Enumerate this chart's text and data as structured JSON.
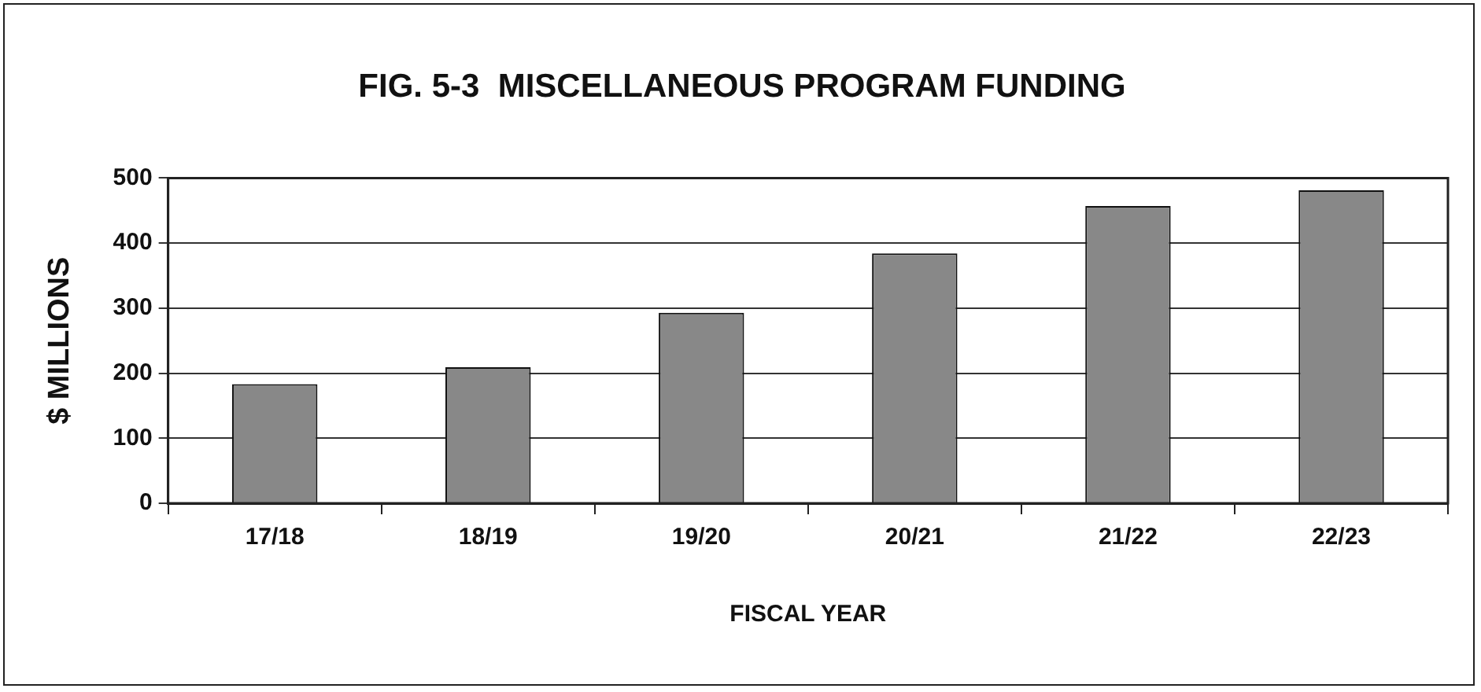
{
  "chart_data": {
    "type": "bar",
    "title": "FIG. 5-3  MISCELLANEOUS PROGRAM FUNDING",
    "xlabel": "FISCAL YEAR",
    "ylabel": "$ MILLIONS",
    "categories": [
      "17/18",
      "18/19",
      "19/20",
      "20/21",
      "21/22",
      "22/23"
    ],
    "values": [
      183,
      209,
      293,
      384,
      457,
      481
    ],
    "color": "#888888",
    "ylim": [
      0,
      500
    ],
    "yticks": [
      0,
      100,
      200,
      300,
      400,
      500
    ],
    "grid": "y",
    "legend": false
  }
}
